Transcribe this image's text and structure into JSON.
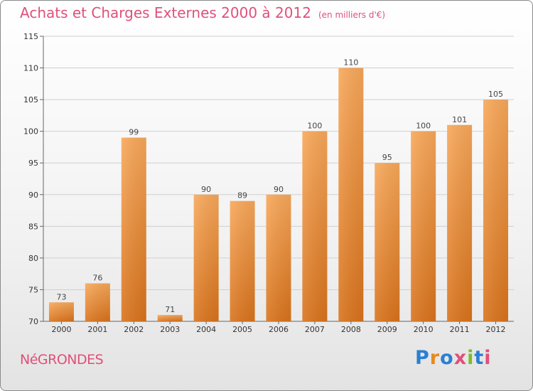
{
  "header": {
    "title": "Achats et Charges Externes 2000 à 2012",
    "unit_note": "(en milliers d'€)"
  },
  "footer": {
    "city": "NéGRONDES",
    "brand": "Proxiti"
  },
  "colors": {
    "bar_light": "#f8a85a",
    "bar_dark": "#d9731c",
    "title": "#e0507a",
    "grid": "#d0d0d0"
  },
  "chart_data": {
    "type": "bar",
    "title": "Achats et Charges Externes 2000 à 2012",
    "xlabel": "",
    "ylabel": "",
    "categories": [
      "2000",
      "2001",
      "2002",
      "2003",
      "2004",
      "2005",
      "2006",
      "2007",
      "2008",
      "2009",
      "2010",
      "2011",
      "2012"
    ],
    "values": [
      73,
      76,
      99,
      71,
      90,
      89,
      90,
      100,
      110,
      95,
      100,
      101,
      105
    ],
    "ylim": [
      70,
      115
    ],
    "yticks": [
      70,
      75,
      80,
      85,
      90,
      95,
      100,
      105,
      110,
      115
    ],
    "grid": true,
    "data_labels": true
  }
}
